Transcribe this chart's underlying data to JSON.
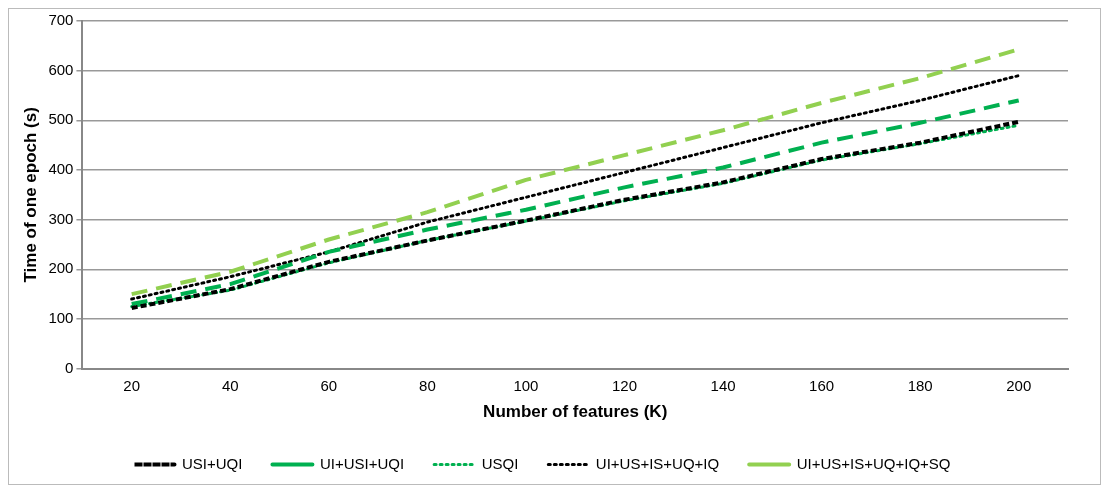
{
  "chart_data": {
    "type": "line",
    "xlabel": "Number of features (K)",
    "ylabel": "Time of one epoch (s)",
    "categories": [
      "20",
      "40",
      "60",
      "80",
      "100",
      "120",
      "140",
      "160",
      "180",
      "200"
    ],
    "ylim": [
      0,
      700
    ],
    "yticks": [
      0,
      100,
      200,
      300,
      400,
      500,
      600,
      700
    ],
    "grid": "y",
    "legend": "bottom",
    "marker": "none",
    "series": [
      {
        "name": "USI+UQI",
        "color": "#000000",
        "line_style": "dashed",
        "values": [
          122,
          160,
          215,
          258,
          298,
          340,
          375,
          422,
          455,
          497
        ]
      },
      {
        "name": "UI+USI+UQI",
        "color": "#00b050",
        "line_style": "dashed",
        "values": [
          130,
          170,
          235,
          280,
          320,
          365,
          405,
          455,
          495,
          540
        ]
      },
      {
        "name": "USQI",
        "color": "#00b050",
        "line_style": "dotted",
        "values": [
          125,
          158,
          213,
          258,
          297,
          338,
          373,
          420,
          453,
          490
        ]
      },
      {
        "name": "UI+US+IS+UQ+IQ",
        "color": "#000000",
        "line_style": "dotted",
        "values": [
          140,
          185,
          235,
          295,
          345,
          395,
          445,
          495,
          540,
          590
        ]
      },
      {
        "name": "UI+US+IS+UQ+IQ+SQ",
        "color": "#92d050",
        "line_style": "dashed",
        "values": [
          150,
          195,
          260,
          315,
          380,
          430,
          480,
          535,
          585,
          643
        ]
      }
    ]
  }
}
